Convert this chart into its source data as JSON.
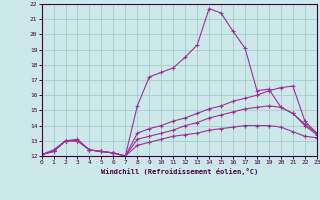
{
  "title": "",
  "xlabel": "Windchill (Refroidissement éolien,°C)",
  "ylabel": "",
  "background_color": "#cce8e8",
  "grid_color": "#aacccc",
  "line_color": "#993399",
  "xlim": [
    0,
    23
  ],
  "ylim": [
    12,
    22
  ],
  "xticks": [
    0,
    1,
    2,
    3,
    4,
    5,
    6,
    7,
    8,
    9,
    10,
    11,
    12,
    13,
    14,
    15,
    16,
    17,
    18,
    19,
    20,
    21,
    22,
    23
  ],
  "yticks": [
    12,
    13,
    14,
    15,
    16,
    17,
    18,
    19,
    20,
    21,
    22
  ],
  "series": [
    {
      "x": [
        0,
        1,
        2,
        3,
        4,
        5,
        6,
        7,
        8,
        9,
        10,
        11,
        12,
        13,
        14,
        15,
        16,
        17,
        18,
        19,
        20,
        21,
        22,
        23
      ],
      "y": [
        12.1,
        12.4,
        13.0,
        13.1,
        12.4,
        12.3,
        12.2,
        12.0,
        15.3,
        17.2,
        17.5,
        17.8,
        18.5,
        19.3,
        21.7,
        21.4,
        20.2,
        19.1,
        16.3,
        16.4,
        15.2,
        14.8,
        14.1,
        13.5
      ]
    },
    {
      "x": [
        0,
        1,
        2,
        3,
        4,
        5,
        6,
        7,
        8,
        9,
        10,
        11,
        12,
        13,
        14,
        15,
        16,
        17,
        18,
        19,
        20,
        21,
        22,
        23
      ],
      "y": [
        12.1,
        12.3,
        13.0,
        13.0,
        12.4,
        12.3,
        12.2,
        12.0,
        13.5,
        13.8,
        14.0,
        14.3,
        14.5,
        14.8,
        15.1,
        15.3,
        15.6,
        15.8,
        16.0,
        16.3,
        16.5,
        16.6,
        14.3,
        13.5
      ]
    },
    {
      "x": [
        0,
        1,
        2,
        3,
        4,
        5,
        6,
        7,
        8,
        9,
        10,
        11,
        12,
        13,
        14,
        15,
        16,
        17,
        18,
        19,
        20,
        21,
        22,
        23
      ],
      "y": [
        12.1,
        12.3,
        13.0,
        13.0,
        12.4,
        12.3,
        12.2,
        12.0,
        13.1,
        13.3,
        13.5,
        13.7,
        14.0,
        14.2,
        14.5,
        14.7,
        14.9,
        15.1,
        15.2,
        15.3,
        15.2,
        14.8,
        14.0,
        13.4
      ]
    },
    {
      "x": [
        0,
        1,
        2,
        3,
        4,
        5,
        6,
        7,
        8,
        9,
        10,
        11,
        12,
        13,
        14,
        15,
        16,
        17,
        18,
        19,
        20,
        21,
        22,
        23
      ],
      "y": [
        12.1,
        12.3,
        13.0,
        13.0,
        12.4,
        12.3,
        12.2,
        12.0,
        12.7,
        12.9,
        13.1,
        13.3,
        13.4,
        13.5,
        13.7,
        13.8,
        13.9,
        14.0,
        14.0,
        14.0,
        13.9,
        13.6,
        13.3,
        13.2
      ]
    }
  ]
}
